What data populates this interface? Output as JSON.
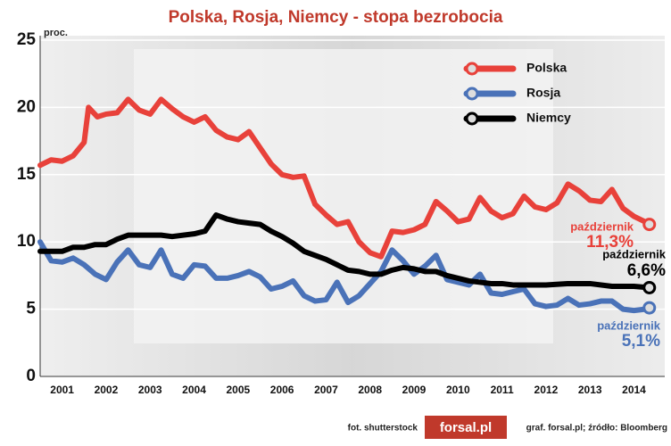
{
  "chart_data": {
    "type": "line",
    "title": "Polska, Rosja, Niemcy - stopa bezrobocia",
    "y_unit": "proc.",
    "xlim": [
      2001,
      2015.2
    ],
    "ylim": [
      0,
      25
    ],
    "yticks": [
      0,
      5,
      10,
      15,
      20,
      25
    ],
    "xticks": [
      {
        "value": 2001.5,
        "label": "2001"
      },
      {
        "value": 2002.5,
        "label": "2002"
      },
      {
        "value": 2003.5,
        "label": "2003"
      },
      {
        "value": 2004.5,
        "label": "2004"
      },
      {
        "value": 2005.5,
        "label": "2005"
      },
      {
        "value": 2006.5,
        "label": "2006"
      },
      {
        "value": 2007.5,
        "label": "2007"
      },
      {
        "value": 2008.5,
        "label": "2008"
      },
      {
        "value": 2009.5,
        "label": "2009"
      },
      {
        "value": 2010.5,
        "label": "2010"
      },
      {
        "value": 2011.5,
        "label": "2011"
      },
      {
        "value": 2012.5,
        "label": "2012"
      },
      {
        "value": 2013.5,
        "label": "2013"
      },
      {
        "value": 2014.5,
        "label": "2014"
      }
    ],
    "grid": true,
    "legend": "top-right",
    "series": [
      {
        "name": "Polska",
        "color": "#e8413a",
        "note": "październik",
        "last_value_label": "11,3%",
        "x": [
          2001.0,
          2001.25,
          2001.5,
          2001.75,
          2002.0,
          2002.1,
          2002.3,
          2002.5,
          2002.75,
          2003.0,
          2003.25,
          2003.5,
          2003.75,
          2004.0,
          2004.25,
          2004.5,
          2004.75,
          2005.0,
          2005.25,
          2005.5,
          2005.75,
          2006.0,
          2006.25,
          2006.5,
          2006.75,
          2007.0,
          2007.25,
          2007.5,
          2007.75,
          2008.0,
          2008.25,
          2008.5,
          2008.75,
          2009.0,
          2009.25,
          2009.5,
          2009.75,
          2010.0,
          2010.25,
          2010.5,
          2010.75,
          2011.0,
          2011.25,
          2011.5,
          2011.75,
          2012.0,
          2012.25,
          2012.5,
          2012.75,
          2013.0,
          2013.25,
          2013.5,
          2013.75,
          2014.0,
          2014.25,
          2014.5,
          2014.75,
          2014.85
        ],
        "values": [
          15.7,
          16.1,
          16.0,
          16.4,
          17.4,
          20.0,
          19.3,
          19.5,
          19.6,
          20.6,
          19.8,
          19.5,
          20.6,
          19.9,
          19.3,
          18.9,
          19.3,
          18.3,
          17.8,
          17.6,
          18.2,
          17.0,
          15.8,
          15.0,
          14.8,
          14.9,
          12.8,
          12.0,
          11.3,
          11.5,
          10.0,
          9.2,
          8.9,
          10.8,
          10.7,
          10.9,
          11.3,
          13.0,
          12.3,
          11.5,
          11.7,
          13.3,
          12.3,
          11.8,
          12.1,
          13.4,
          12.6,
          12.4,
          12.9,
          14.3,
          13.8,
          13.1,
          13.0,
          13.9,
          12.5,
          11.9,
          11.5,
          11.3
        ]
      },
      {
        "name": "Rosja",
        "color": "#4a72b8",
        "note": "październik",
        "last_value_label": "5,1%",
        "x": [
          2001.0,
          2001.25,
          2001.5,
          2001.75,
          2002.0,
          2002.25,
          2002.5,
          2002.75,
          2003.0,
          2003.25,
          2003.5,
          2003.75,
          2004.0,
          2004.25,
          2004.5,
          2004.75,
          2005.0,
          2005.25,
          2005.5,
          2005.75,
          2006.0,
          2006.25,
          2006.5,
          2006.75,
          2007.0,
          2007.25,
          2007.5,
          2007.75,
          2008.0,
          2008.25,
          2008.5,
          2008.75,
          2009.0,
          2009.25,
          2009.5,
          2009.75,
          2010.0,
          2010.25,
          2010.5,
          2010.75,
          2011.0,
          2011.25,
          2011.5,
          2011.75,
          2012.0,
          2012.25,
          2012.5,
          2012.75,
          2013.0,
          2013.25,
          2013.5,
          2013.75,
          2014.0,
          2014.25,
          2014.5,
          2014.75,
          2014.85
        ],
        "values": [
          10.0,
          8.6,
          8.5,
          8.8,
          8.3,
          7.6,
          7.2,
          8.5,
          9.4,
          8.3,
          8.1,
          9.4,
          7.6,
          7.3,
          8.3,
          8.2,
          7.3,
          7.3,
          7.5,
          7.8,
          7.4,
          6.5,
          6.7,
          7.1,
          6.0,
          5.6,
          5.7,
          7.0,
          5.5,
          6.0,
          6.9,
          7.8,
          9.4,
          8.6,
          7.6,
          8.2,
          9.0,
          7.2,
          7.0,
          6.8,
          7.6,
          6.2,
          6.1,
          6.3,
          6.5,
          5.4,
          5.2,
          5.3,
          5.8,
          5.3,
          5.4,
          5.6,
          5.6,
          5.0,
          4.9,
          5.0,
          5.1
        ]
      },
      {
        "name": "Niemcy",
        "color": "#000000",
        "note": "październik",
        "last_value_label": "6,6%",
        "x": [
          2001.0,
          2001.5,
          2001.75,
          2002.0,
          2002.25,
          2002.5,
          2002.75,
          2003.0,
          2003.5,
          2003.75,
          2004.0,
          2004.5,
          2004.75,
          2005.0,
          2005.25,
          2005.5,
          2005.75,
          2006.0,
          2006.25,
          2006.5,
          2006.75,
          2007.0,
          2007.25,
          2007.5,
          2007.75,
          2008.0,
          2008.25,
          2008.5,
          2008.75,
          2009.0,
          2009.25,
          2009.5,
          2009.75,
          2010.0,
          2010.25,
          2010.5,
          2010.75,
          2011.0,
          2011.25,
          2011.5,
          2011.75,
          2012.0,
          2012.5,
          2013.0,
          2013.5,
          2014.0,
          2014.5,
          2014.85
        ],
        "values": [
          9.3,
          9.3,
          9.6,
          9.6,
          9.8,
          9.8,
          10.2,
          10.5,
          10.5,
          10.5,
          10.4,
          10.6,
          10.8,
          12.0,
          11.7,
          11.5,
          11.4,
          11.3,
          10.8,
          10.4,
          9.9,
          9.3,
          9.0,
          8.7,
          8.3,
          7.9,
          7.8,
          7.6,
          7.6,
          7.9,
          8.1,
          8.0,
          7.8,
          7.8,
          7.5,
          7.3,
          7.1,
          7.0,
          6.9,
          6.9,
          6.8,
          6.8,
          6.8,
          6.9,
          6.9,
          6.7,
          6.7,
          6.6
        ]
      }
    ],
    "credits": {
      "photo": "fot. shutterstock",
      "logo": "forsal.pl",
      "source": "graf. forsal.pl;  źródło: Bloomberg"
    }
  }
}
